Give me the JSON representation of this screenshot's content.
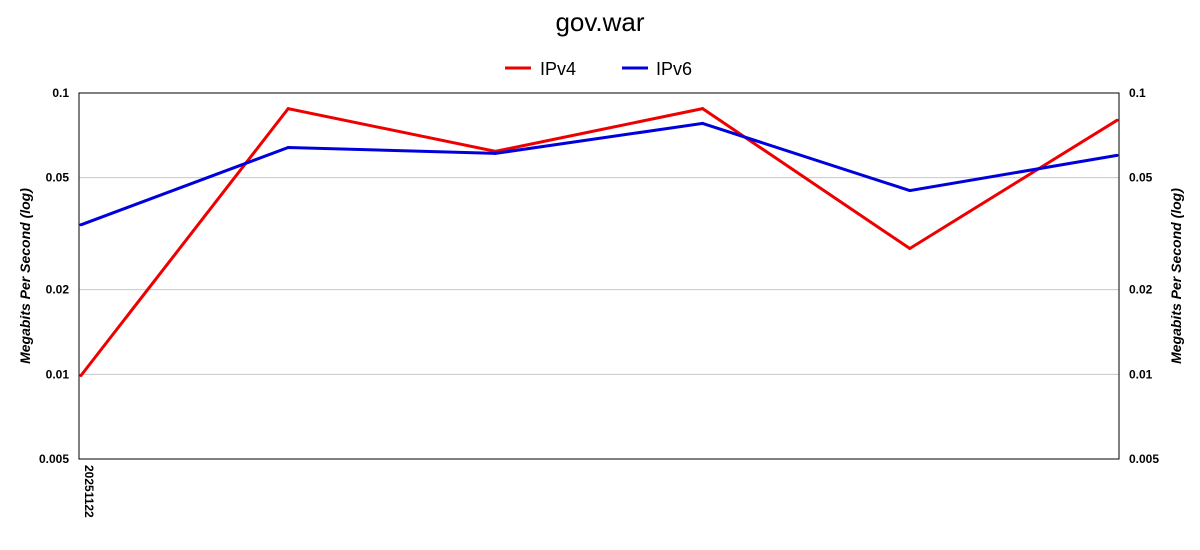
{
  "chart_data": {
    "type": "line",
    "title": "gov.war",
    "ylabel": "Megabits Per Second (log)",
    "yscale": "log",
    "ylim": [
      0.005,
      0.1
    ],
    "yticks": [
      {
        "value": 0.1,
        "label": "0.1"
      },
      {
        "value": 0.05,
        "label": "0.05"
      },
      {
        "value": 0.02,
        "label": "0.02"
      },
      {
        "value": 0.01,
        "label": "0.01"
      },
      {
        "value": 0.005,
        "label": "0.005"
      }
    ],
    "x": [
      0,
      1,
      2,
      3,
      4,
      5
    ],
    "xticks": [
      {
        "index": 0,
        "label": "20251122"
      }
    ],
    "grid": true,
    "legend_position": "top-center",
    "series": [
      {
        "name": "IPv4",
        "color": "#ee0000",
        "values": [
          0.0099,
          0.088,
          0.062,
          0.088,
          0.028,
          0.08
        ]
      },
      {
        "name": "IPv6",
        "color": "#0000dd",
        "values": [
          0.034,
          0.064,
          0.061,
          0.078,
          0.045,
          0.06
        ]
      }
    ]
  }
}
